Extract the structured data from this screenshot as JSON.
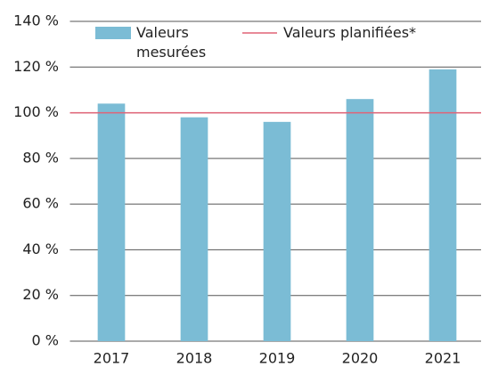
{
  "chart_data": {
    "type": "bar",
    "categories": [
      "2017",
      "2018",
      "2019",
      "2020",
      "2021"
    ],
    "series": [
      {
        "name": "Valeurs mesurées",
        "color": "#7bbcd5",
        "values": [
          104,
          98,
          96,
          106,
          119
        ]
      }
    ],
    "reference_lines": [
      {
        "name": "Valeurs planifiées*",
        "value": 100,
        "color": "#e06377"
      }
    ],
    "ylim": [
      0,
      140
    ],
    "yticks": [
      {
        "value": 0,
        "label": "0 %"
      },
      {
        "value": 20,
        "label": "20 %"
      },
      {
        "value": 40,
        "label": "40 %"
      },
      {
        "value": 60,
        "label": "60 %"
      },
      {
        "value": 80,
        "label": "80 %"
      },
      {
        "value": 100,
        "label": "100 %"
      },
      {
        "value": 120,
        "label": "120 %"
      },
      {
        "value": 140,
        "label": "140 %"
      }
    ],
    "grid": true
  }
}
